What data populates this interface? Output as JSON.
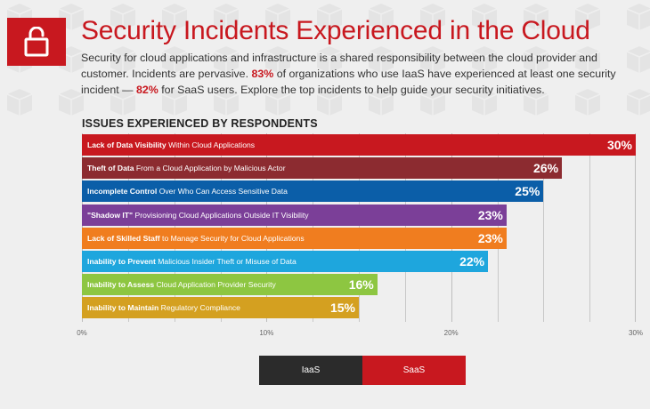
{
  "header": {
    "title": "Security Incidents Experienced in the Cloud",
    "intro_1": "Security for cloud applications and infrastructure is a shared responsibility between the cloud provider and customer. Incidents are pervasive. ",
    "intro_iaas_pct": "83%",
    "intro_2": " of organizations who use IaaS have experienced at least one security incident — ",
    "intro_saas_pct": "82%",
    "intro_3": " for SaaS users. Explore the top incidents to help guide your security initiatives."
  },
  "colors": {
    "brand_red": "#c8181f",
    "iaas_legend": "#2b2b2b",
    "saas_legend": "#c8181f"
  },
  "icons": {
    "header_icon": "unlocked-padlock-icon"
  },
  "chart_data": {
    "type": "bar",
    "orientation": "horizontal",
    "title": "ISSUES EXPERIENCED BY RESPONDENTS",
    "xlim": [
      0,
      30
    ],
    "ticks": [
      "0%",
      "10%",
      "20%",
      "30%"
    ],
    "tick_values": [
      0,
      10,
      20,
      30
    ],
    "grid": true,
    "bars": [
      {
        "bold": "Lack of Data Visibility",
        "rest": " Within Cloud Applications",
        "value": 30,
        "label": "30%",
        "color": "#c8181f"
      },
      {
        "bold": "Theft of Data",
        "rest": " From a Cloud Application by Malicious Actor",
        "value": 26,
        "label": "26%",
        "color": "#8c2b30"
      },
      {
        "bold": "Incomplete Control",
        "rest": " Over Who Can Access Sensitive Data",
        "value": 25,
        "label": "25%",
        "color": "#0b5ea8"
      },
      {
        "bold": "\"Shadow IT\"",
        "rest": " Provisioning Cloud Applications Outside IT Visibility",
        "value": 23,
        "label": "23%",
        "color": "#7b3f98"
      },
      {
        "bold": "Lack of Skilled Staff",
        "rest": " to Manage Security for Cloud Applications",
        "value": 23,
        "label": "23%",
        "color": "#f07d1f"
      },
      {
        "bold": "Inability to Prevent",
        "rest": " Malicious Insider Theft or Misuse of Data",
        "value": 22,
        "label": "22%",
        "color": "#1ea6dd"
      },
      {
        "bold": "Inability to Assess",
        "rest": " Cloud Application Provider Security",
        "value": 16,
        "label": "16%",
        "color": "#8dc641"
      },
      {
        "bold": "Inability to Maintain",
        "rest": " Regulatory Compliance",
        "value": 15,
        "label": "15%",
        "color": "#d4a020"
      }
    ],
    "legend": [
      {
        "name": "IaaS",
        "color": "#2b2b2b"
      },
      {
        "name": "SaaS",
        "color": "#c8181f"
      }
    ],
    "legend_position": "bottom-center"
  }
}
